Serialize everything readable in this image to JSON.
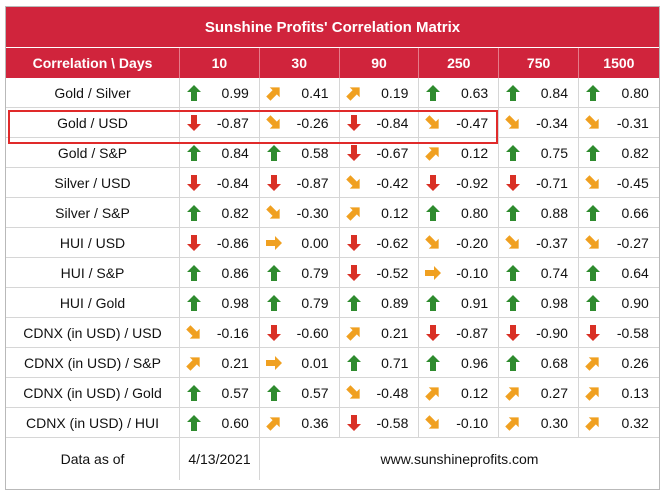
{
  "title": "Sunshine Profits' Correlation Matrix",
  "header": [
    "Correlation \\ Days",
    "10",
    "30",
    "90",
    "250",
    "750",
    "1500"
  ],
  "rows": [
    {
      "label": "Gold / Silver",
      "cells": [
        [
          "up",
          "0.99"
        ],
        [
          "ne",
          "0.41"
        ],
        [
          "ne",
          "0.19"
        ],
        [
          "up",
          "0.63"
        ],
        [
          "up",
          "0.84"
        ],
        [
          "up",
          "0.80"
        ]
      ]
    },
    {
      "label": "Gold / USD",
      "cells": [
        [
          "down",
          "-0.87"
        ],
        [
          "se",
          "-0.26"
        ],
        [
          "down",
          "-0.84"
        ],
        [
          "se",
          "-0.47"
        ],
        [
          "se",
          "-0.34"
        ],
        [
          "se",
          "-0.31"
        ]
      ]
    },
    {
      "label": "Gold / S&P",
      "cells": [
        [
          "up",
          "0.84"
        ],
        [
          "up",
          "0.58"
        ],
        [
          "down",
          "-0.67"
        ],
        [
          "ne",
          "0.12"
        ],
        [
          "up",
          "0.75"
        ],
        [
          "up",
          "0.82"
        ]
      ]
    },
    {
      "label": "Silver / USD",
      "cells": [
        [
          "down",
          "-0.84"
        ],
        [
          "down",
          "-0.87"
        ],
        [
          "se",
          "-0.42"
        ],
        [
          "down",
          "-0.92"
        ],
        [
          "down",
          "-0.71"
        ],
        [
          "se",
          "-0.45"
        ]
      ]
    },
    {
      "label": "Silver / S&P",
      "cells": [
        [
          "up",
          "0.82"
        ],
        [
          "se",
          "-0.30"
        ],
        [
          "ne",
          "0.12"
        ],
        [
          "up",
          "0.80"
        ],
        [
          "up",
          "0.88"
        ],
        [
          "up",
          "0.66"
        ]
      ]
    },
    {
      "label": "HUI / USD",
      "cells": [
        [
          "down",
          "-0.86"
        ],
        [
          "right",
          "0.00"
        ],
        [
          "down",
          "-0.62"
        ],
        [
          "se",
          "-0.20"
        ],
        [
          "se",
          "-0.37"
        ],
        [
          "se",
          "-0.27"
        ]
      ]
    },
    {
      "label": "HUI / S&P",
      "cells": [
        [
          "up",
          "0.86"
        ],
        [
          "up",
          "0.79"
        ],
        [
          "down",
          "-0.52"
        ],
        [
          "right",
          "-0.10"
        ],
        [
          "up",
          "0.74"
        ],
        [
          "up",
          "0.64"
        ]
      ]
    },
    {
      "label": "HUI / Gold",
      "cells": [
        [
          "up",
          "0.98"
        ],
        [
          "up",
          "0.79"
        ],
        [
          "up",
          "0.89"
        ],
        [
          "up",
          "0.91"
        ],
        [
          "up",
          "0.98"
        ],
        [
          "up",
          "0.90"
        ]
      ]
    },
    {
      "label": "CDNX (in USD) / USD",
      "cells": [
        [
          "se",
          "-0.16"
        ],
        [
          "down",
          "-0.60"
        ],
        [
          "ne",
          "0.21"
        ],
        [
          "down",
          "-0.87"
        ],
        [
          "down",
          "-0.90"
        ],
        [
          "down",
          "-0.58"
        ]
      ]
    },
    {
      "label": "CDNX (in USD) / S&P",
      "cells": [
        [
          "ne",
          "0.21"
        ],
        [
          "right",
          "0.01"
        ],
        [
          "up",
          "0.71"
        ],
        [
          "up",
          "0.96"
        ],
        [
          "up",
          "0.68"
        ],
        [
          "ne",
          "0.26"
        ]
      ]
    },
    {
      "label": "CDNX (in USD) / Gold",
      "cells": [
        [
          "up",
          "0.57"
        ],
        [
          "up",
          "0.57"
        ],
        [
          "se",
          "-0.48"
        ],
        [
          "ne",
          "0.12"
        ],
        [
          "ne",
          "0.27"
        ],
        [
          "ne",
          "0.13"
        ]
      ]
    },
    {
      "label": "CDNX (in USD) / HUI",
      "cells": [
        [
          "up",
          "0.60"
        ],
        [
          "ne",
          "0.36"
        ],
        [
          "down",
          "-0.58"
        ],
        [
          "se",
          "-0.10"
        ],
        [
          "ne",
          "0.30"
        ],
        [
          "ne",
          "0.32"
        ]
      ]
    }
  ],
  "footer": {
    "label": "Data as of",
    "date": "4/13/2021",
    "url": "www.sunshineprofits.com"
  },
  "colors": {
    "header_bg": "#d0243c",
    "up": "#2e8b2e",
    "down": "#d93025",
    "ne": "#f0a020",
    "se": "#f0a020",
    "right": "#f0a020",
    "highlight": "#e02a2a"
  }
}
